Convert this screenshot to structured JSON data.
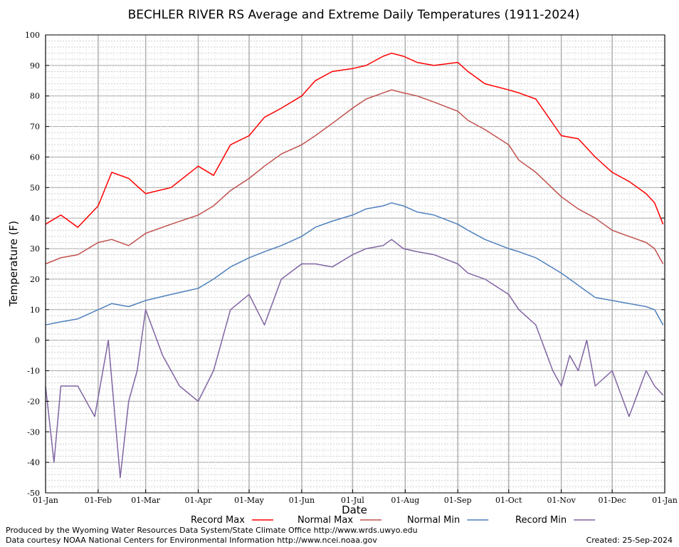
{
  "chart_data": {
    "type": "line",
    "title": "BECHLER RIVER RS Average and Extreme Daily Temperatures (1911-2024)",
    "xlabel": "Date",
    "ylabel": "Temperature (F)",
    "ylim": [
      -50,
      100
    ],
    "yticks": [
      "100",
      "90",
      "80",
      "70",
      "60",
      "50",
      "40",
      "30",
      "20",
      "10",
      "0",
      "-10",
      "-20",
      "-30",
      "-40",
      "-50"
    ],
    "xticks": [
      "01-Jan",
      "01-Feb",
      "01-Mar",
      "01-Apr",
      "01-May",
      "01-Jun",
      "01-Jul",
      "01-Aug",
      "01-Sep",
      "01-Oct",
      "01-Nov",
      "01-Dec",
      "01-Jan"
    ],
    "grid": true,
    "legend_position": "bottom",
    "series": [
      {
        "name": "Record Max",
        "color": "#ff0000",
        "x": [
          1,
          10,
          20,
          32,
          40,
          50,
          60,
          75,
          91,
          100,
          110,
          121,
          130,
          140,
          152,
          160,
          170,
          182,
          190,
          200,
          205,
          212,
          220,
          230,
          244,
          250,
          260,
          274,
          280,
          290,
          305,
          315,
          325,
          335,
          345,
          355,
          360,
          365
        ],
        "values": [
          38,
          41,
          37,
          44,
          55,
          53,
          48,
          50,
          57,
          54,
          64,
          67,
          73,
          76,
          80,
          85,
          88,
          89,
          90,
          93,
          94,
          93,
          91,
          90,
          91,
          88,
          84,
          82,
          81,
          79,
          67,
          66,
          60,
          55,
          52,
          48,
          45,
          38
        ]
      },
      {
        "name": "Normal Max",
        "color": "#c0504d",
        "x": [
          1,
          10,
          20,
          32,
          40,
          50,
          60,
          75,
          91,
          100,
          110,
          121,
          130,
          140,
          152,
          160,
          170,
          182,
          190,
          200,
          205,
          212,
          220,
          230,
          244,
          250,
          260,
          274,
          280,
          290,
          305,
          315,
          325,
          335,
          345,
          355,
          360,
          365
        ],
        "values": [
          25,
          27,
          28,
          32,
          33,
          31,
          35,
          38,
          41,
          44,
          49,
          53,
          57,
          61,
          64,
          67,
          71,
          76,
          79,
          81,
          82,
          81,
          80,
          78,
          75,
          72,
          69,
          64,
          59,
          55,
          47,
          43,
          40,
          36,
          34,
          32,
          30,
          25
        ]
      },
      {
        "name": "Normal Min",
        "color": "#4f81bd",
        "x": [
          1,
          10,
          20,
          32,
          40,
          50,
          60,
          75,
          91,
          100,
          110,
          121,
          130,
          140,
          152,
          160,
          170,
          182,
          190,
          200,
          205,
          212,
          220,
          230,
          244,
          250,
          260,
          274,
          280,
          290,
          305,
          315,
          325,
          335,
          345,
          355,
          360,
          365
        ],
        "values": [
          5,
          6,
          7,
          10,
          12,
          11,
          13,
          15,
          17,
          20,
          24,
          27,
          29,
          31,
          34,
          37,
          39,
          41,
          43,
          44,
          45,
          44,
          42,
          41,
          38,
          36,
          33,
          30,
          29,
          27,
          22,
          18,
          14,
          13,
          12,
          11,
          10,
          5
        ]
      },
      {
        "name": "Record Min",
        "color": "#8064a2",
        "x": [
          1,
          6,
          10,
          20,
          30,
          38,
          45,
          50,
          55,
          60,
          70,
          80,
          91,
          100,
          110,
          121,
          130,
          140,
          152,
          160,
          170,
          182,
          190,
          200,
          205,
          212,
          220,
          230,
          244,
          250,
          260,
          274,
          280,
          290,
          300,
          305,
          310,
          315,
          320,
          325,
          335,
          345,
          355,
          360,
          365
        ],
        "values": [
          -15,
          -40,
          -15,
          -15,
          -25,
          0,
          -45,
          -20,
          -10,
          10,
          -5,
          -15,
          -20,
          -10,
          10,
          15,
          5,
          20,
          25,
          25,
          24,
          28,
          30,
          31,
          33,
          30,
          29,
          28,
          25,
          22,
          20,
          15,
          10,
          5,
          -10,
          -15,
          -5,
          -10,
          0,
          -15,
          -10,
          -25,
          -10,
          -15,
          -18
        ]
      }
    ]
  },
  "footer": {
    "produced_by": "Produced by the Wyoming Water Resources Data System/State Climate Office http://www.wrds.uwyo.edu",
    "data_courtesy": "Data courtesy NOAA National Centers for Environmental Information http://www.ncei.noaa.gov",
    "created": "Created:  25-Sep-2024"
  }
}
